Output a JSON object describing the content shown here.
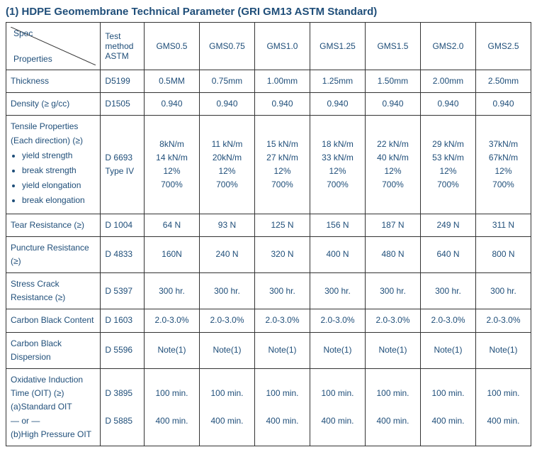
{
  "title": "(1) HDPE Geomembrane Technical Parameter (GRI GM13 ASTM Standard)",
  "colors": {
    "text": "#1f4e79",
    "border": "#333333",
    "background": "#ffffff"
  },
  "typography": {
    "title_fontsize_pt": 11,
    "body_fontsize_pt": 9,
    "font_family": "Arial, sans-serif"
  },
  "headers": {
    "spec_top": "Spec",
    "spec_bottom": "Properties",
    "method": "Test method ASTM",
    "cols": [
      "GMS0.5",
      "GMS0.75",
      "GMS1.0",
      "GMS1.25",
      "GMS1.5",
      "GMS2.0",
      "GMS2.5"
    ]
  },
  "rows": [
    {
      "prop": "Thickness",
      "method": "D5199",
      "vals": [
        "0.5MM",
        "0.75mm",
        "1.00mm",
        "1.25mm",
        "1.50mm",
        "2.00mm",
        "2.50mm"
      ]
    },
    {
      "prop": "Density (≥   g/cc)",
      "method": "D1505",
      "vals": [
        "0.940",
        "0.940",
        "0.940",
        "0.940",
        "0.940",
        "0.940",
        "0.940"
      ]
    },
    {
      "prop_lines": [
        "Tensile Properties",
        "(Each direction) (≥)"
      ],
      "prop_bullets": [
        "yield strength",
        "break strength",
        "yield elongation",
        "break elongation"
      ],
      "method_lines": [
        "D 6693",
        "Type IV"
      ],
      "vals_lines": [
        [
          "8kN/m",
          "14 kN/m",
          "12%",
          "700%"
        ],
        [
          "11 kN/m",
          "20kN/m",
          "12%",
          "700%"
        ],
        [
          "15 kN/m",
          "27 kN/m",
          "12%",
          "700%"
        ],
        [
          "18 kN/m",
          "33 kN/m",
          "12%",
          "700%"
        ],
        [
          "22 kN/m",
          "40 kN/m",
          "12%",
          "700%"
        ],
        [
          "29 kN/m",
          "53 kN/m",
          "12%",
          "700%"
        ],
        [
          "37kN/m",
          "67kN/m",
          "12%",
          "700%"
        ]
      ]
    },
    {
      "prop": "Tear Resistance (≥)",
      "method": "D 1004",
      "vals": [
        "64 N",
        "93 N",
        "125 N",
        "156 N",
        "187 N",
        "249 N",
        "311 N"
      ]
    },
    {
      "prop": "Puncture Resistance (≥)",
      "method": "D 4833",
      "vals": [
        "160N",
        "240 N",
        "320 N",
        "400 N",
        "480 N",
        "640 N",
        "800 N"
      ]
    },
    {
      "prop": "Stress Crack Resistance (≥)",
      "method": "D 5397",
      "vals": [
        "300 hr.",
        "300 hr.",
        "300 hr.",
        "300 hr.",
        "300 hr.",
        "300 hr.",
        "300 hr."
      ]
    },
    {
      "prop": "Carbon Black Content",
      "method": "D 1603",
      "vals": [
        "2.0-3.0%",
        "2.0-3.0%",
        "2.0-3.0%",
        "2.0-3.0%",
        "2.0-3.0%",
        "2.0-3.0%",
        "2.0-3.0%"
      ]
    },
    {
      "prop": "Carbon Black Dispersion",
      "method": "D 5596",
      "vals": [
        "Note(1)",
        "Note(1)",
        "Note(1)",
        "Note(1)",
        "Note(1)",
        "Note(1)",
        "Note(1)"
      ]
    },
    {
      "prop_lines": [
        "Oxidative Induction",
        "Time (OIT) (≥)",
        "(a)Standard OIT",
        "— or —",
        "(b)High Pressure OIT"
      ],
      "method_lines": [
        "D 3895",
        "",
        "D 5885"
      ],
      "vals_lines": [
        [
          "100 min.",
          "",
          "400 min."
        ],
        [
          "100 min.",
          "",
          "400 min."
        ],
        [
          "100 min.",
          "",
          "400 min."
        ],
        [
          "100 min.",
          "",
          "400 min."
        ],
        [
          "100 min.",
          "",
          "400 min."
        ],
        [
          "100 min.",
          "",
          "400 min."
        ],
        [
          "100 min.",
          "",
          "400 min."
        ]
      ]
    }
  ]
}
